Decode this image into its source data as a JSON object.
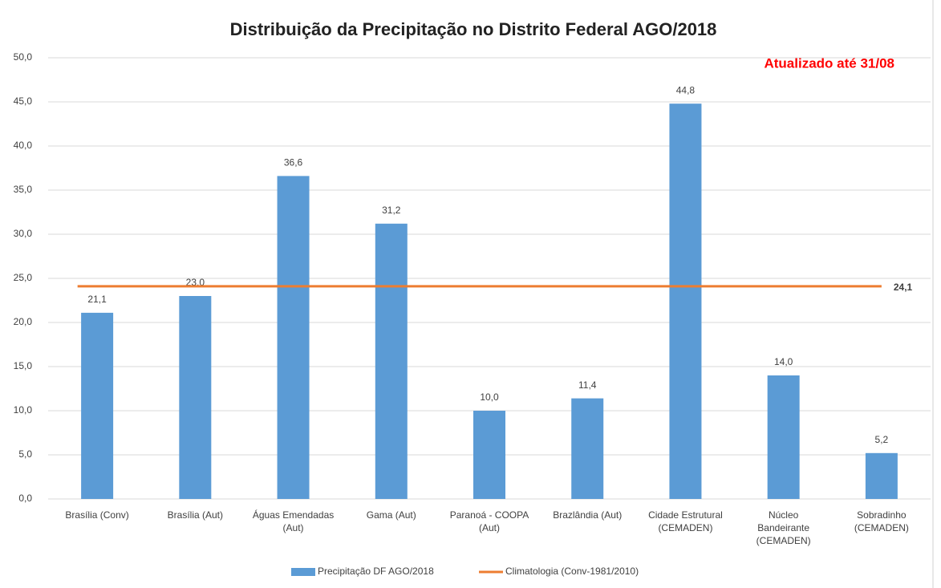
{
  "chart_data": {
    "type": "bar",
    "title": "Distribuição da Precipitação no Distrito Federal AGO/2018",
    "annotation": "Atualizado até 31/08",
    "categories": [
      "Brasília (Conv)",
      "Brasília (Aut)",
      "Águas Emendadas\n(Aut)",
      "Gama (Aut)",
      "Paranoá - COOPA\n(Aut)",
      "Brazlândia (Aut)",
      "Cidade Estrutural\n(CEMADEN)",
      "Núcleo\nBandeirante\n(CEMADEN)",
      "Sobradinho\n(CEMADEN)"
    ],
    "series": [
      {
        "name": "Precipitação DF AGO/2018",
        "color": "#5b9bd5",
        "values": [
          21.1,
          23.0,
          36.6,
          31.2,
          10.0,
          11.4,
          44.8,
          14.0,
          5.2
        ],
        "value_labels": [
          "21,1",
          "23,0",
          "36,6",
          "31,2",
          "10,0",
          "11,4",
          "44,8",
          "14,0",
          "5,2"
        ]
      }
    ],
    "reference_line": {
      "name": "Climatologia (Conv-1981/2010)",
      "color": "#ed7d31",
      "value": 24.1,
      "value_label": "24,1"
    },
    "ylim": [
      0,
      50
    ],
    "yticks": [
      {
        "value": 0,
        "label": "0,0"
      },
      {
        "value": 5,
        "label": "5,0"
      },
      {
        "value": 10,
        "label": "10,0"
      },
      {
        "value": 15,
        "label": "15,0"
      },
      {
        "value": 20,
        "label": "20,0"
      },
      {
        "value": 25,
        "label": "25,0"
      },
      {
        "value": 30,
        "label": "30,0"
      },
      {
        "value": 35,
        "label": "35,0"
      },
      {
        "value": 40,
        "label": "40,0"
      },
      {
        "value": 45,
        "label": "45,0"
      },
      {
        "value": 50,
        "label": "50,0"
      }
    ],
    "grid": true,
    "legend": "bottom"
  }
}
